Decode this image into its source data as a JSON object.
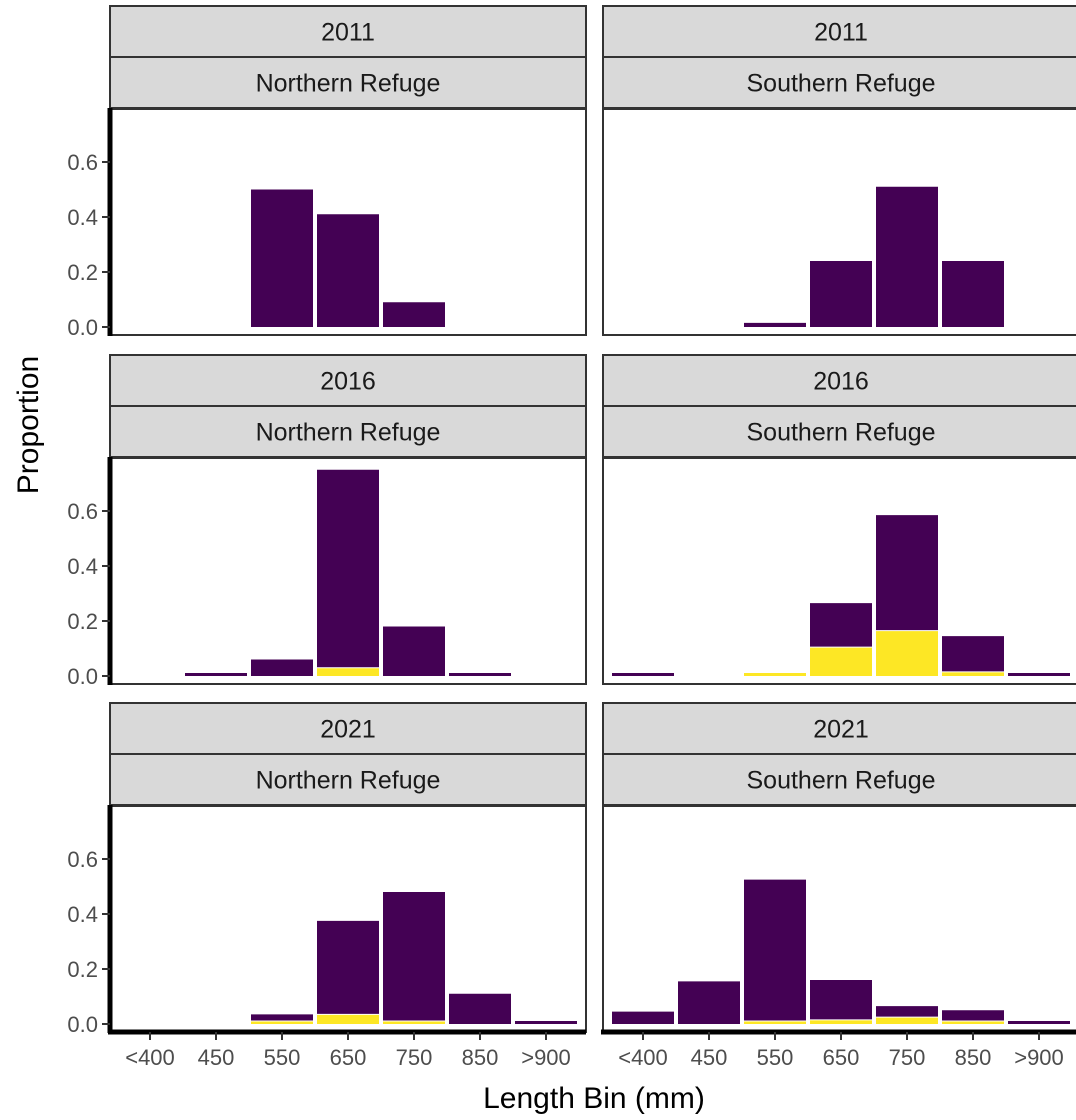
{
  "chart_data": {
    "type": "bar",
    "stacked": true,
    "xlabel": "Length Bin (mm)",
    "ylabel": "Proportion",
    "categories": [
      "<400",
      "450",
      "550",
      "650",
      "750",
      "850",
      ">900"
    ],
    "ylim": [
      0,
      0.75
    ],
    "yticks": [
      "0.0",
      "0.2",
      "0.4",
      "0.6"
    ],
    "grid": false,
    "colors": {
      "purple": "#440154",
      "yellow": "#FDE725",
      "strip_fill": "#D9D9D9",
      "panel_border": "#333333"
    },
    "panels": [
      {
        "year": "2011",
        "refuge": "Northern Refuge",
        "purple": [
          0,
          0,
          0.5,
          0.41,
          0.09,
          0,
          0
        ],
        "yellow": [
          0,
          0,
          0,
          0,
          0,
          0,
          0
        ]
      },
      {
        "year": "2011",
        "refuge": "Southern Refuge",
        "purple": [
          0,
          0,
          0.015,
          0.24,
          0.51,
          0.24,
          0
        ],
        "yellow": [
          0,
          0,
          0,
          0,
          0,
          0,
          0
        ]
      },
      {
        "year": "2016",
        "refuge": "Northern Refuge",
        "purple": [
          0,
          0.01,
          0.06,
          0.72,
          0.18,
          0.01,
          0
        ],
        "yellow": [
          0,
          0,
          0,
          0.03,
          0,
          0,
          0
        ]
      },
      {
        "year": "2016",
        "refuge": "Southern Refuge",
        "purple": [
          0.01,
          0,
          0,
          0.16,
          0.42,
          0.13,
          0.01
        ],
        "yellow": [
          0,
          0,
          0.01,
          0.105,
          0.165,
          0.015,
          0
        ]
      },
      {
        "year": "2021",
        "refuge": "Northern Refuge",
        "purple": [
          0,
          0,
          0.025,
          0.34,
          0.47,
          0.11,
          0.01
        ],
        "yellow": [
          0,
          0,
          0.01,
          0.035,
          0.01,
          0,
          0
        ]
      },
      {
        "year": "2021",
        "refuge": "Southern Refuge",
        "purple": [
          0.045,
          0.155,
          0.52,
          0.145,
          0.04,
          0.04,
          0.01
        ],
        "yellow": [
          0,
          0,
          0.005,
          0.015,
          0.025,
          0.01,
          0
        ]
      }
    ]
  }
}
